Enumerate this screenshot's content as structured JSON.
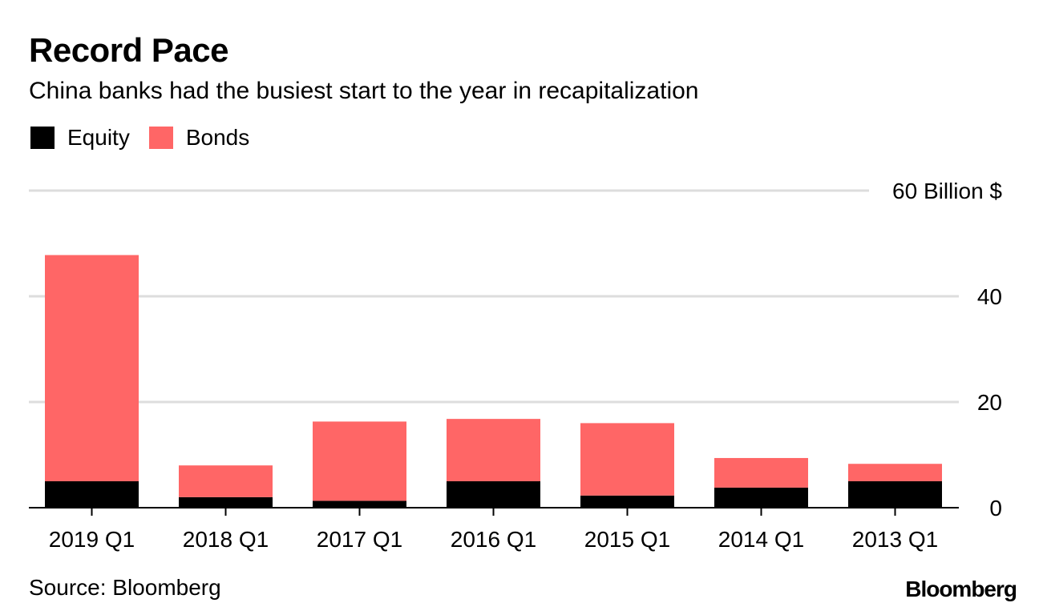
{
  "title": "Record Pace",
  "subtitle": "China banks had the busiest start to the year in recapitalization",
  "source": "Source: Bloomberg",
  "logo": "Bloomberg",
  "colors": {
    "equity": "#000000",
    "bonds": "#ff6666",
    "grid": "#dddddd",
    "axis": "#000000"
  },
  "chart_data": {
    "type": "bar",
    "stacked": true,
    "title": "Record Pace",
    "subtitle": "China banks had the busiest start to the year in recapitalization",
    "xlabel": "",
    "ylabel": "Billion $",
    "categories": [
      "2019 Q1",
      "2018 Q1",
      "2017 Q1",
      "2016 Q1",
      "2015 Q1",
      "2014 Q1",
      "2013 Q1"
    ],
    "series": [
      {
        "name": "Equity",
        "values": [
          5.0,
          2.0,
          1.3,
          5.0,
          2.3,
          3.8,
          5.0
        ]
      },
      {
        "name": "Bonds",
        "values": [
          42.8,
          6.0,
          15.0,
          11.8,
          13.7,
          5.6,
          3.3
        ]
      }
    ],
    "ylim": [
      0,
      60
    ],
    "yticks": [
      0,
      20,
      40,
      60
    ],
    "ytick_labels": [
      "0",
      "20",
      "40",
      "60 Billion $"
    ],
    "grid": true,
    "legend_position": "top-left"
  }
}
